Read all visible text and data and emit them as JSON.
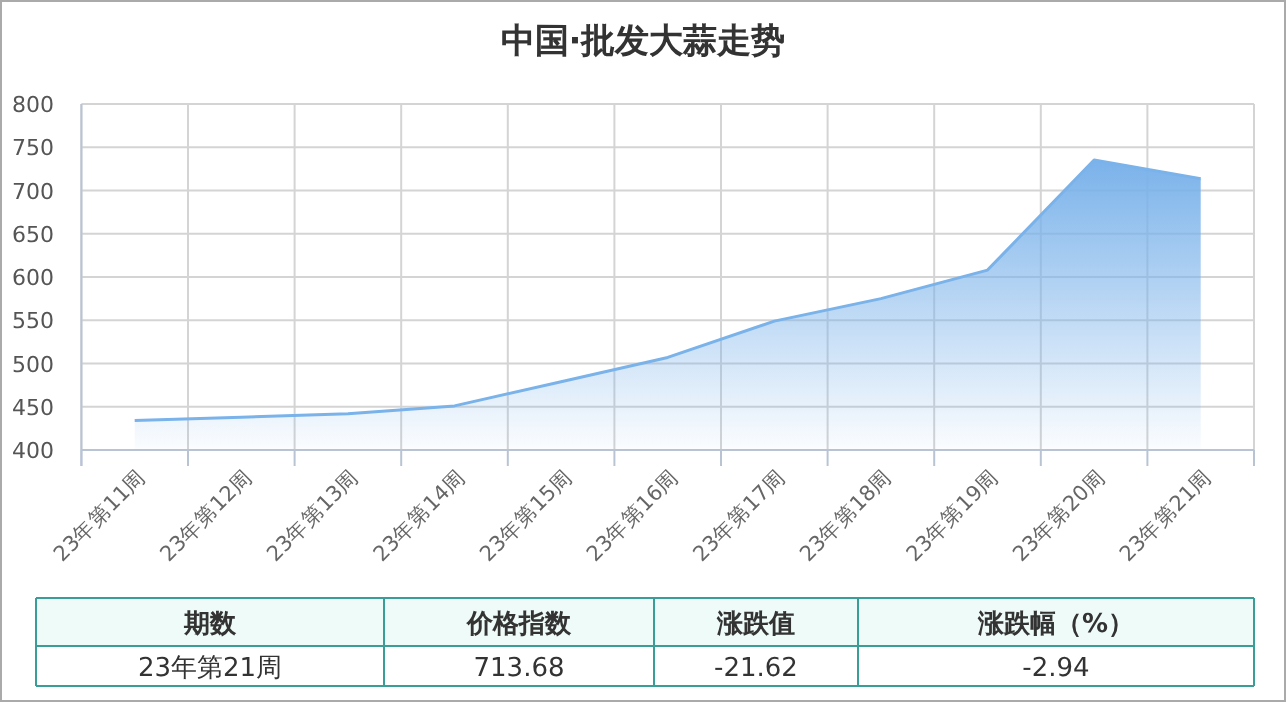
{
  "chart_data": {
    "type": "area",
    "title": "中国·批发大蒜走势",
    "categories": [
      "23年第11周",
      "23年第12周",
      "23年第13周",
      "23年第14周",
      "23年第15周",
      "23年第16周",
      "23年第17周",
      "23年第18周",
      "23年第19周",
      "23年第20周",
      "23年第21周"
    ],
    "series": [
      {
        "color": "#7ab2ea",
        "values": [
          434,
          438,
          442,
          451,
          479,
          507,
          549,
          575,
          608,
          735.3,
          713.68
        ]
      }
    ],
    "ylim": [
      400,
      800
    ],
    "yticks": [
      400,
      450,
      500,
      550,
      600,
      650,
      700,
      750,
      800
    ],
    "grid": true,
    "annotations": [
      "期数",
      "价格指数",
      "涨跌值",
      "涨跌幅（%）",
      "23年第21周",
      "713.68",
      "-21.62",
      "-2.94"
    ]
  }
}
